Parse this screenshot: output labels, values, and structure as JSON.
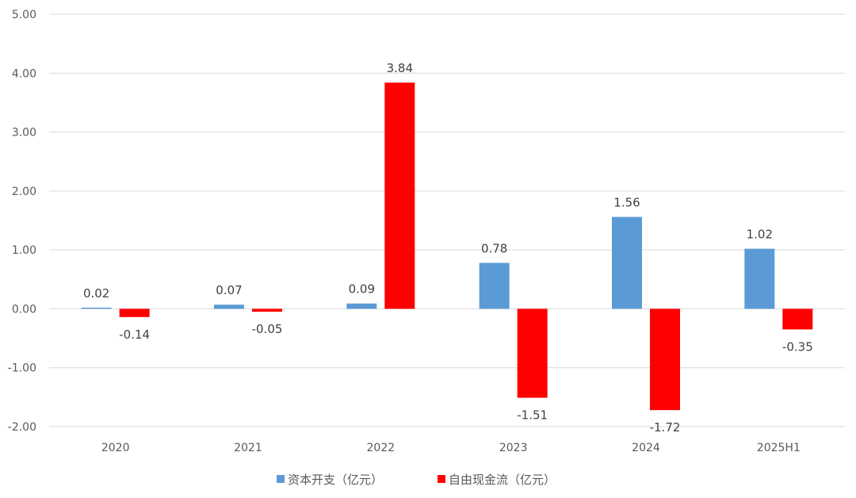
{
  "chart_data": {
    "type": "bar",
    "categories": [
      "2020",
      "2021",
      "2022",
      "2023",
      "2024",
      "2025H1"
    ],
    "series": [
      {
        "name": "资本开支（亿元）",
        "color": "#5b9bd5",
        "values": [
          0.02,
          0.07,
          0.09,
          0.78,
          1.56,
          1.02
        ]
      },
      {
        "name": "自由现金流（亿元）",
        "color": "#ff0000",
        "values": [
          -0.14,
          -0.05,
          3.84,
          -1.51,
          -1.72,
          -0.35
        ]
      }
    ],
    "labels": [
      [
        "0.02",
        "0.07",
        "0.09",
        "0.78",
        "1.56",
        "1.02"
      ],
      [
        "-0.14",
        "-0.05",
        "3.84",
        "-1.51",
        "-1.72",
        "-0.35"
      ]
    ],
    "yticks": [
      "5.00",
      "4.00",
      "3.00",
      "2.00",
      "1.00",
      "0.00",
      "-1.00",
      "-2.00"
    ],
    "ylim": [
      -2,
      5
    ],
    "grid": true,
    "legend": "bottom",
    "title": "",
    "xlabel": "",
    "ylabel": ""
  }
}
